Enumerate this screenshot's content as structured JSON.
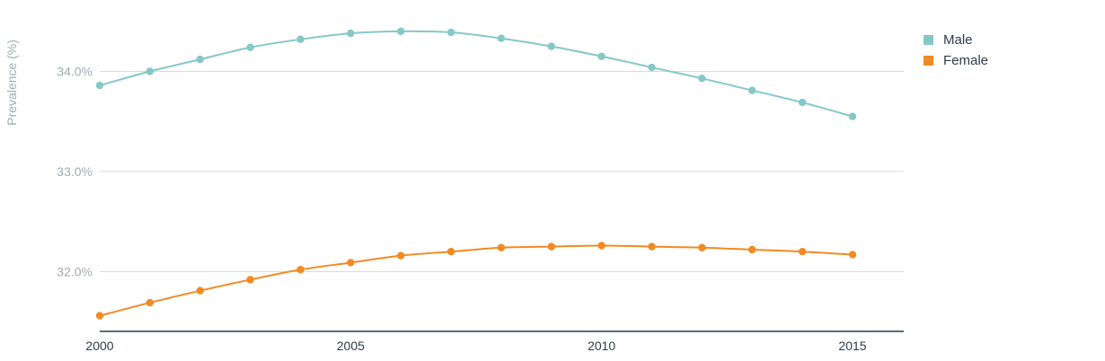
{
  "chart_data": {
    "type": "line",
    "ylabel": "Prevalence (%)",
    "ylim": [
      31.4,
      34.6
    ],
    "xlim": [
      2000,
      2016
    ],
    "y_ticks": [
      {
        "value": 32.0,
        "label": "32.0%"
      },
      {
        "value": 33.0,
        "label": "33.0%"
      },
      {
        "value": 34.0,
        "label": "34.0%"
      }
    ],
    "x_ticks": [
      {
        "value": 2000,
        "label": "2000"
      },
      {
        "value": 2005,
        "label": "2005"
      },
      {
        "value": 2010,
        "label": "2010"
      },
      {
        "value": 2015,
        "label": "2015"
      }
    ],
    "grid": true,
    "legend_position": "top-right",
    "x": [
      2000,
      2001,
      2002,
      2003,
      2004,
      2005,
      2006,
      2007,
      2008,
      2009,
      2010,
      2011,
      2012,
      2013,
      2014,
      2015
    ],
    "series": [
      {
        "name": "Male",
        "color": "#86c8c8",
        "values": [
          33.86,
          34.0,
          34.12,
          34.24,
          34.32,
          34.38,
          34.4,
          34.39,
          34.33,
          34.25,
          34.15,
          34.04,
          33.93,
          33.81,
          33.69,
          33.55
        ]
      },
      {
        "name": "Female",
        "color": "#f28a24",
        "values": [
          31.56,
          31.69,
          31.81,
          31.92,
          32.02,
          32.09,
          32.16,
          32.2,
          32.24,
          32.25,
          32.26,
          32.25,
          32.24,
          32.22,
          32.2,
          32.17
        ]
      }
    ]
  }
}
